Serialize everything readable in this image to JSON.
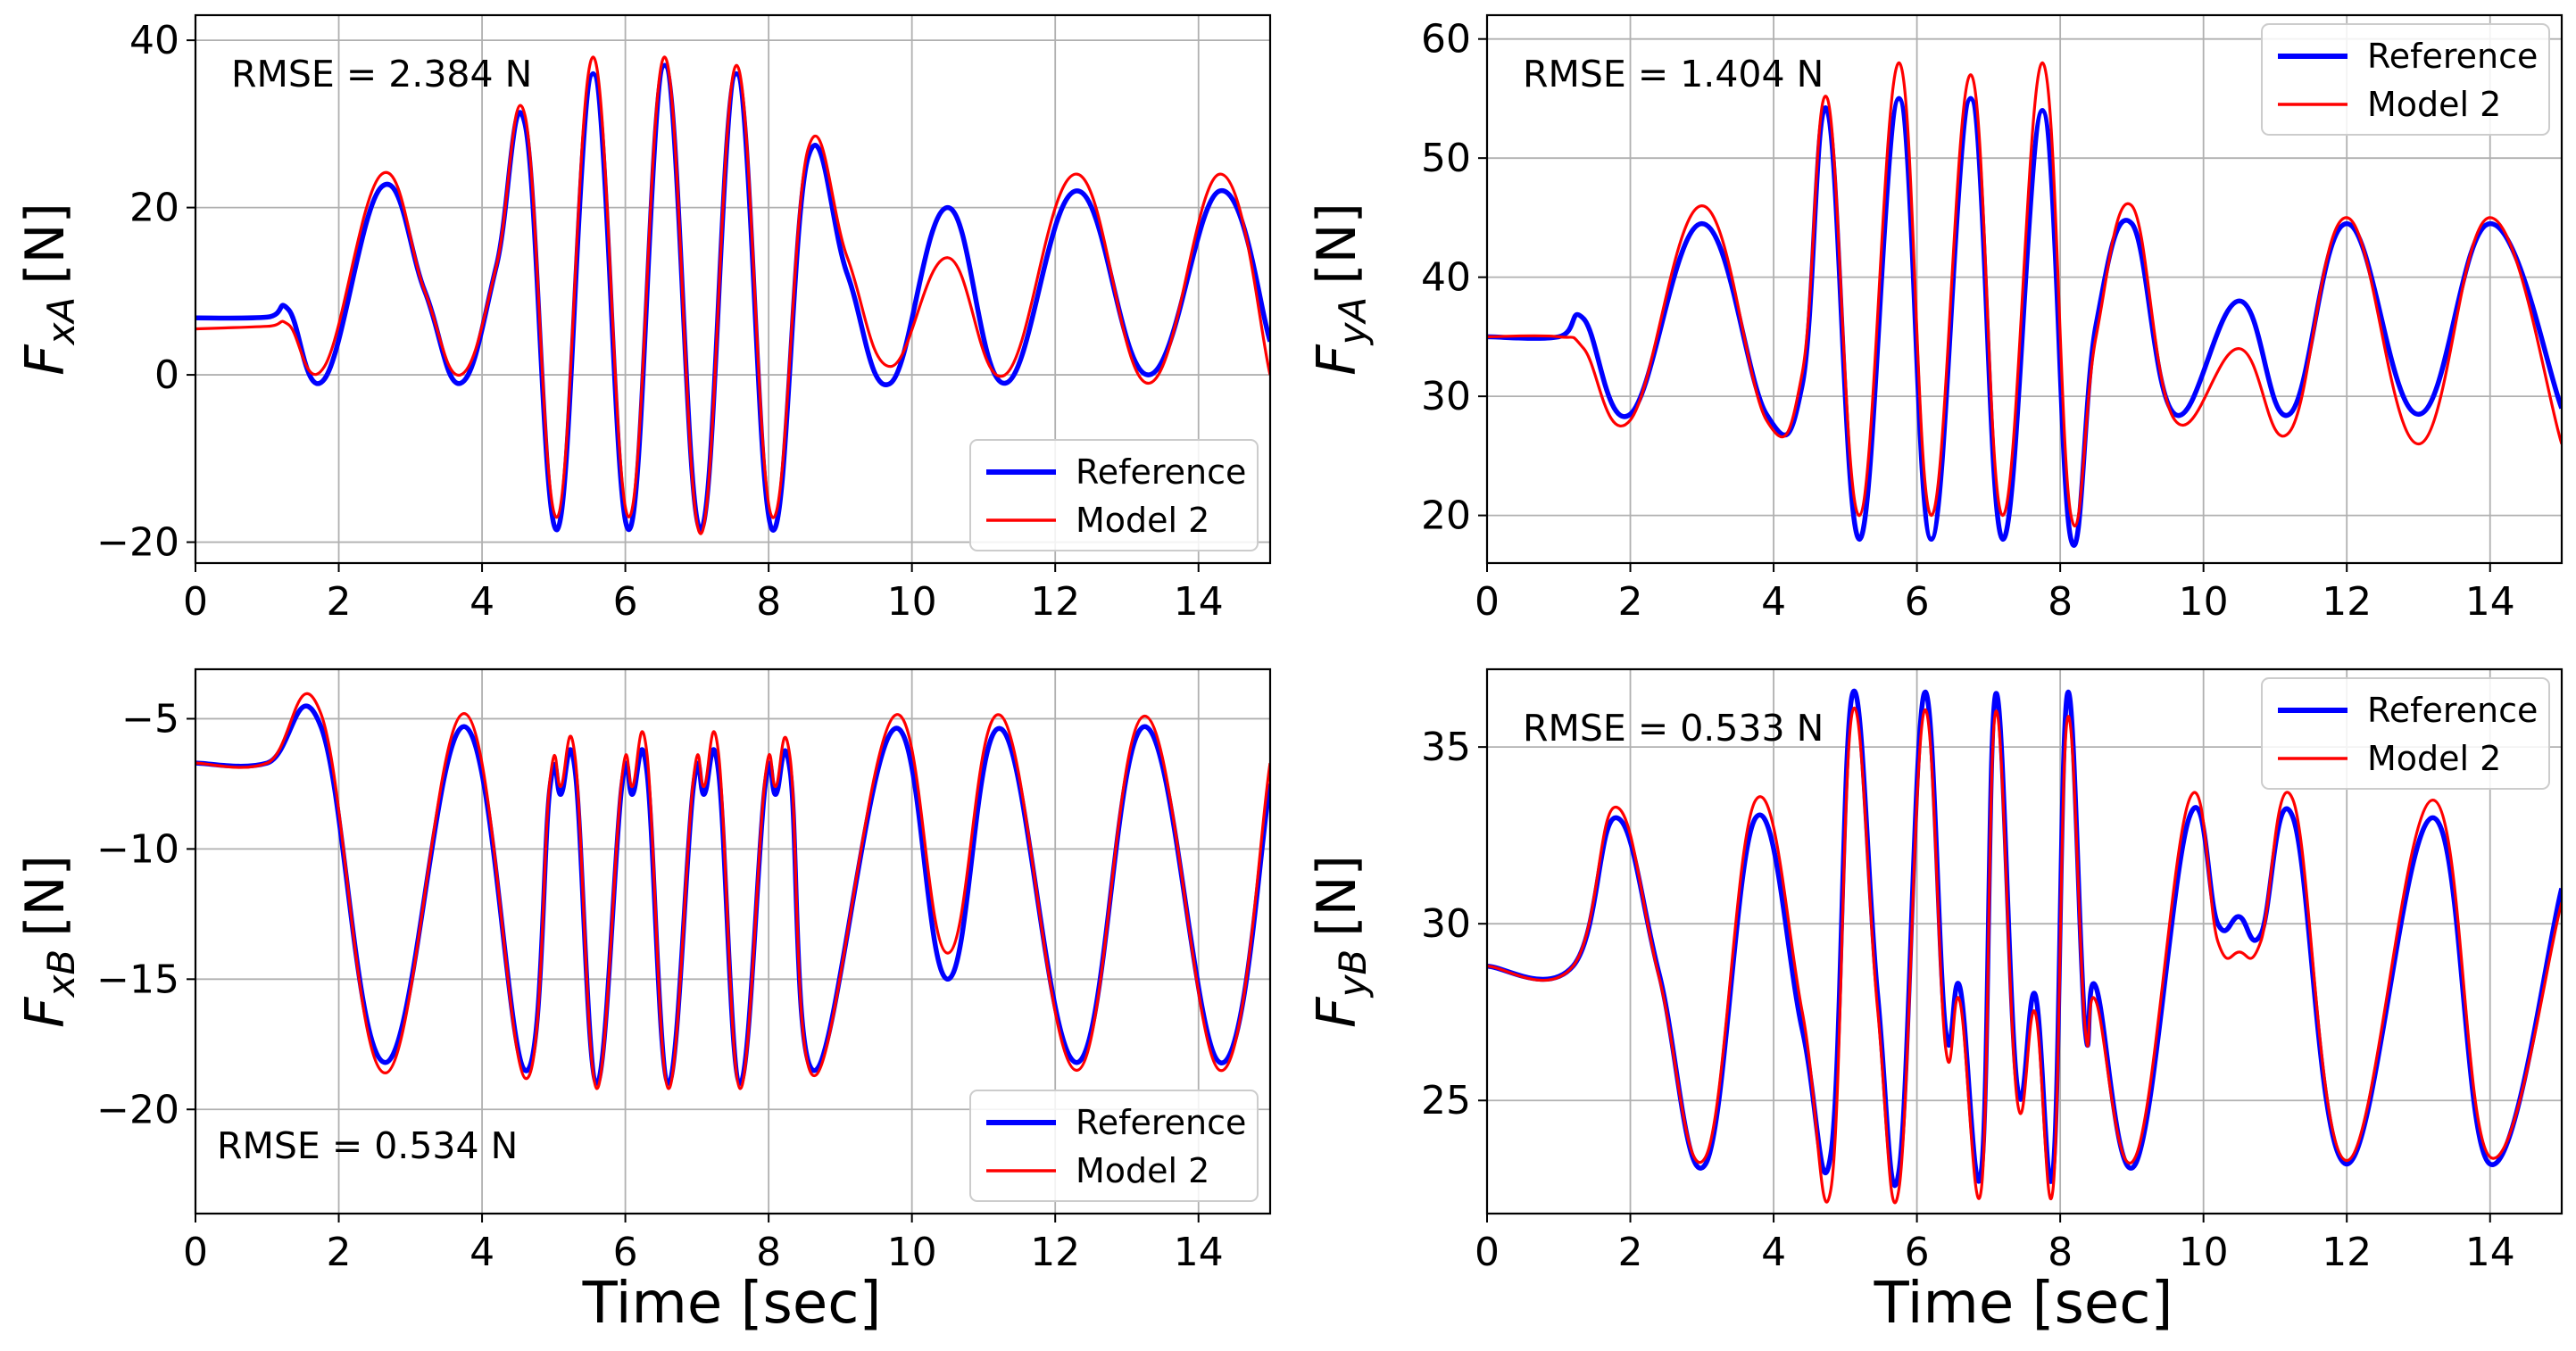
{
  "figure": {
    "xlabel": "Time [sec]",
    "colors": {
      "reference": "#0000ff",
      "model": "#ff0000",
      "grid": "#b0b0b0"
    }
  },
  "chart_data": [
    {
      "type": "line",
      "id": "fxa",
      "ylabel_main": "F",
      "ylabel_sub": "xA",
      "ylabel_unit": "[N]",
      "xlim": [
        0,
        15
      ],
      "ylim": [
        -22.5,
        43
      ],
      "xticks": [
        0,
        2,
        4,
        6,
        8,
        10,
        12,
        14
      ],
      "yticks": [
        -20,
        0,
        20,
        40
      ],
      "annotation": "RMSE = 2.384 N",
      "annotation_pos": "top-left",
      "legend_pos": "bottom-right",
      "x": [
        0,
        1,
        1.3,
        1.8,
        2.6,
        3.2,
        3.7,
        4.2,
        4.6,
        5.05,
        5.55,
        6.05,
        6.55,
        7.05,
        7.55,
        8.05,
        8.55,
        9.1,
        9.7,
        10.5,
        11.3,
        12.3,
        13.3,
        14.3,
        15
      ],
      "series": [
        {
          "name": "Reference",
          "values": [
            6.8,
            6.9,
            7.8,
            -0.5,
            22.5,
            10,
            -1,
            13,
            30,
            -18.5,
            36,
            -18.5,
            37,
            -18.5,
            36,
            -18.5,
            26,
            12,
            -1,
            20,
            -1,
            22,
            0,
            22,
            4
          ]
        },
        {
          "name": "Model 2",
          "values": [
            5.5,
            5.8,
            6,
            1,
            24,
            10,
            0,
            13,
            31,
            -17,
            38,
            -17,
            38,
            -19,
            37,
            -17,
            27,
            14,
            1,
            14,
            0,
            24,
            -1,
            24,
            0
          ]
        }
      ]
    },
    {
      "type": "line",
      "id": "fya",
      "ylabel_main": "F",
      "ylabel_sub": "yA",
      "ylabel_unit": "[N]",
      "xlim": [
        0,
        15
      ],
      "ylim": [
        16,
        62
      ],
      "xticks": [
        0,
        2,
        4,
        6,
        8,
        10,
        12,
        14
      ],
      "yticks": [
        20,
        30,
        40,
        50,
        60
      ],
      "annotation": "RMSE = 1.404 N",
      "annotation_pos": "top-left",
      "legend_pos": "top-right",
      "x": [
        0,
        1,
        1.35,
        2,
        3,
        3.9,
        4.4,
        4.75,
        5.2,
        5.75,
        6.2,
        6.75,
        7.2,
        7.75,
        8.15,
        8.5,
        9,
        9.6,
        10.5,
        11.2,
        12,
        13,
        14,
        15
      ],
      "series": [
        {
          "name": "Reference",
          "values": [
            35,
            35,
            36.5,
            28.5,
            44.5,
            28.5,
            31,
            54,
            18,
            55,
            18,
            55,
            18,
            54,
            18,
            36,
            44.5,
            28.5,
            38,
            28.5,
            44.5,
            28.5,
            44.5,
            29
          ]
        },
        {
          "name": "Model 2",
          "values": [
            35,
            35,
            34,
            28,
            46,
            28,
            32,
            55,
            20,
            58,
            20,
            57,
            20,
            58,
            20,
            35,
            46,
            28,
            34,
            27,
            45,
            26,
            45,
            26
          ]
        }
      ]
    },
    {
      "type": "line",
      "id": "fxb",
      "ylabel_main": "F",
      "ylabel_sub": "xB",
      "ylabel_unit": "[N]",
      "xlim": [
        0,
        15
      ],
      "ylim": [
        -24,
        -3.1
      ],
      "xticks": [
        0,
        2,
        4,
        6,
        8,
        10,
        12,
        14
      ],
      "yticks": [
        -20,
        -15,
        -10,
        -5
      ],
      "annotation": "RMSE = 0.534 N",
      "annotation_pos": "bottom-left",
      "legend_pos": "bottom-right",
      "x": [
        0,
        1,
        1.75,
        2.65,
        3.75,
        4.6,
        4.95,
        5.1,
        5.3,
        5.6,
        5.95,
        6.1,
        6.3,
        6.6,
        6.95,
        7.1,
        7.3,
        7.6,
        7.95,
        8.1,
        8.3,
        8.65,
        9.75,
        10.5,
        11.25,
        12.3,
        13.25,
        14.3,
        15
      ],
      "series": [
        {
          "name": "Reference",
          "values": [
            -6.7,
            -6.7,
            -5.3,
            -18.2,
            -5.3,
            -18.5,
            -7.6,
            -7.9,
            -7,
            -19,
            -7.6,
            -7.9,
            -7,
            -19,
            -7.6,
            -7.9,
            -7,
            -19,
            -7.6,
            -7.9,
            -7,
            -18.5,
            -5.4,
            -15,
            -5.4,
            -18.2,
            -5.3,
            -18.2,
            -7.5
          ]
        },
        {
          "name": "Model 2",
          "values": [
            -6.7,
            -6.7,
            -4.8,
            -18.6,
            -4.8,
            -18.8,
            -7.3,
            -7.6,
            -6.5,
            -19.2,
            -7.3,
            -7.6,
            -6.3,
            -19.2,
            -7.3,
            -7.6,
            -6.3,
            -19.2,
            -7.3,
            -7.6,
            -6.5,
            -18.7,
            -4.9,
            -14,
            -4.9,
            -18.5,
            -4.9,
            -18.5,
            -6.7
          ]
        }
      ]
    },
    {
      "type": "line",
      "id": "fyb",
      "ylabel_main": "F",
      "ylabel_sub": "yB",
      "ylabel_unit": "[N]",
      "xlim": [
        0,
        15
      ],
      "ylim": [
        21.8,
        37.2
      ],
      "xticks": [
        0,
        2,
        4,
        6,
        8,
        10,
        12,
        14
      ],
      "yticks": [
        25,
        30,
        35
      ],
      "annotation": "RMSE = 0.533 N",
      "annotation_pos": "top-left",
      "legend_pos": "top-right",
      "x": [
        0,
        1.2,
        1.8,
        2.4,
        3.05,
        3.75,
        4.4,
        4.8,
        5.1,
        5.45,
        5.75,
        6.1,
        6.4,
        6.6,
        6.9,
        7.1,
        7.4,
        7.65,
        7.9,
        8.1,
        8.35,
        8.5,
        9.05,
        9.8,
        10.2,
        10.5,
        10.8,
        11.25,
        12,
        13.2,
        14,
        15
      ],
      "series": [
        {
          "name": "Reference",
          "values": [
            28.8,
            28.8,
            33,
            28.6,
            23.2,
            33,
            27,
            23.5,
            36.5,
            28,
            23,
            36.5,
            27,
            28.2,
            23,
            36.5,
            25.4,
            28,
            23,
            36.5,
            27,
            28.2,
            23.2,
            33,
            30,
            30.2,
            29.7,
            33,
            23.2,
            33,
            23.2,
            31
          ]
        },
        {
          "name": "Model 2",
          "values": [
            28.8,
            28.8,
            33.3,
            28.5,
            23.4,
            33.5,
            27.5,
            22.5,
            36,
            27.6,
            22.5,
            36,
            26.5,
            27.8,
            22.5,
            36,
            25,
            27.5,
            22.5,
            35.8,
            27,
            27.8,
            23.4,
            33.5,
            29.5,
            29.2,
            29.5,
            33.5,
            23.3,
            33.5,
            23.4,
            30.6
          ]
        }
      ]
    }
  ]
}
